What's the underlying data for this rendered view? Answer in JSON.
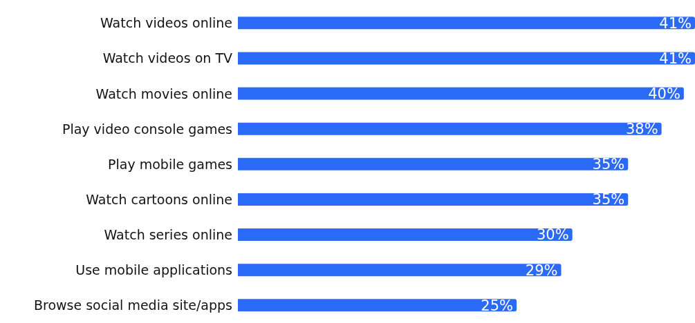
{
  "chart_data": {
    "type": "bar",
    "orientation": "horizontal",
    "categories": [
      "Watch videos online",
      "Watch videos on TV",
      "Watch movies online",
      "Play video console games",
      "Play mobile games",
      "Watch cartoons online",
      "Watch series online",
      "Use mobile applications",
      "Browse social media site/apps"
    ],
    "values": [
      41,
      41,
      40,
      38,
      35,
      35,
      30,
      29,
      25
    ],
    "value_labels": [
      "41%",
      "41%",
      "40%",
      "38%",
      "35%",
      "35%",
      "30%",
      "29%",
      "25%"
    ],
    "color": "#2b6af6"
  }
}
